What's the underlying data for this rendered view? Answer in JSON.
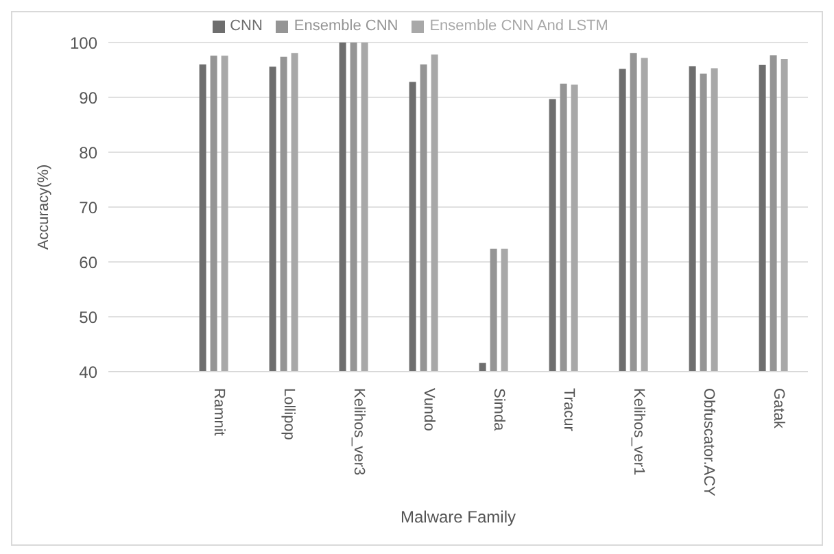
{
  "chart_data": {
    "type": "bar",
    "xlabel": "Malware Family",
    "ylabel": "Accuracy(%)",
    "categories": [
      null,
      "Ramnit",
      "Lollipop",
      "Kelihos_ver3",
      "Vundo",
      "Simda",
      "Tracur",
      "Kelihos_ver1",
      "Obfuscator.ACY",
      "Gatak"
    ],
    "series": [
      {
        "name": "CNN",
        "color": "#6e6e6e",
        "values": [
          null,
          96.0,
          95.6,
          100,
          92.8,
          41.6,
          89.7,
          95.2,
          95.7,
          95.9
        ]
      },
      {
        "name": "Ensemble CNN",
        "color": "#959595",
        "values": [
          null,
          97.6,
          97.4,
          100,
          96.0,
          62.4,
          92.5,
          98.1,
          94.3,
          97.7
        ]
      },
      {
        "name": "Ensemble CNN And LSTM",
        "color": "#a8a8a8",
        "values": [
          null,
          97.6,
          98.1,
          100,
          97.8,
          62.4,
          92.3,
          97.2,
          95.3,
          97.0
        ]
      }
    ],
    "ylim": [
      40,
      100
    ],
    "yticks": [
      40,
      50,
      60,
      70,
      80,
      90,
      100
    ],
    "grid": "y",
    "legend": "top"
  }
}
